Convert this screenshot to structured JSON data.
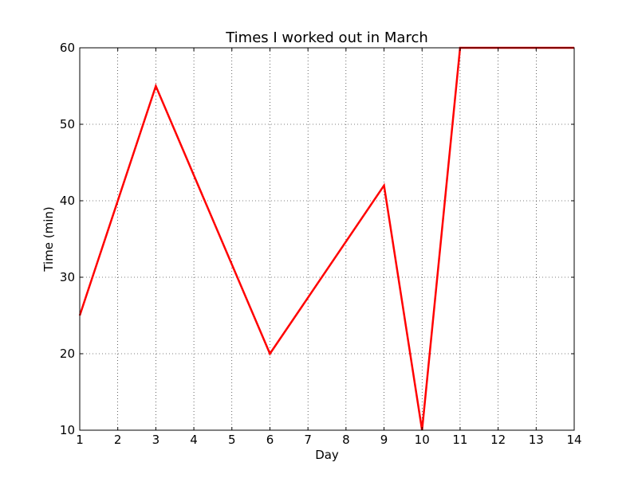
{
  "chart_data": {
    "type": "line",
    "title": "Times I worked out in March",
    "xlabel": "Day",
    "ylabel": "Time (min)",
    "xlim": [
      1,
      14
    ],
    "ylim": [
      10,
      60
    ],
    "x_ticks": [
      1,
      2,
      3,
      4,
      5,
      6,
      7,
      8,
      9,
      10,
      11,
      12,
      13,
      14
    ],
    "y_ticks": [
      10,
      20,
      30,
      40,
      50,
      60
    ],
    "grid": true,
    "series": [
      {
        "color": "#ff0000",
        "x": [
          1,
          3,
          6,
          9,
          10,
          11,
          14
        ],
        "y": [
          25,
          55,
          20,
          42,
          10,
          60,
          60
        ]
      }
    ]
  }
}
